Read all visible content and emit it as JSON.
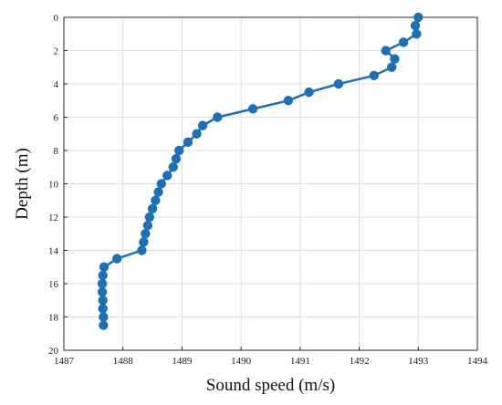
{
  "chart_data": {
    "type": "line",
    "xlabel": "Sound speed (m/s)",
    "ylabel": "Depth (m)",
    "xlim": [
      1487,
      1494
    ],
    "ylim": [
      0,
      20
    ],
    "y_reversed": true,
    "grid": true,
    "xticks": [
      "1487",
      "1488",
      "1489",
      "1490",
      "1491",
      "1492",
      "1493",
      "1494"
    ],
    "yticks": [
      "0",
      "2",
      "4",
      "6",
      "8",
      "10",
      "12",
      "14",
      "16",
      "18",
      "20"
    ],
    "line_color": "#1f6fb4",
    "marker": "filled-circle",
    "series": [
      {
        "x": [
          1493.0,
          1492.95,
          1492.97,
          1492.75,
          1492.45,
          1492.6,
          1492.55,
          1492.25,
          1491.65,
          1491.15,
          1490.8,
          1490.2,
          1489.6,
          1489.35,
          1489.25,
          1489.1,
          1488.95,
          1488.9,
          1488.85,
          1488.75,
          1488.65,
          1488.6,
          1488.55,
          1488.5,
          1488.45,
          1488.42,
          1488.38,
          1488.35,
          1488.32,
          1487.9,
          1487.68,
          1487.66,
          1487.65,
          1487.65,
          1487.66,
          1487.66,
          1487.67,
          1487.67
        ],
        "y": [
          0,
          0.5,
          1.0,
          1.5,
          2.0,
          2.5,
          3.0,
          3.5,
          4.0,
          4.5,
          5.0,
          5.5,
          6.0,
          6.5,
          7.0,
          7.5,
          8.0,
          8.5,
          9.0,
          9.5,
          10.0,
          10.5,
          11.0,
          11.5,
          12.0,
          12.5,
          13.0,
          13.5,
          14.0,
          14.5,
          15.0,
          15.5,
          16.0,
          16.5,
          17.0,
          17.5,
          18.0,
          18.5
        ]
      }
    ]
  }
}
